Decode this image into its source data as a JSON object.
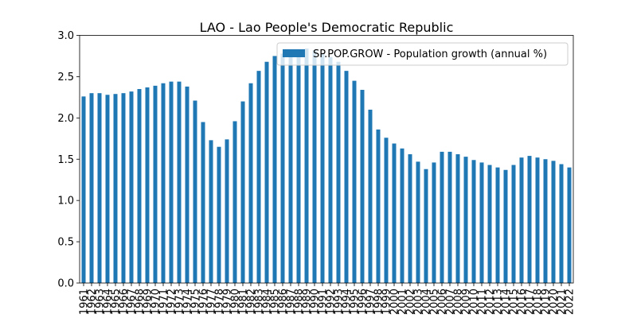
{
  "chart_data": {
    "type": "bar",
    "title": "LAO - Lao People's Democratic Republic",
    "xlabel": "",
    "ylabel": "",
    "ylim": [
      0,
      3.0
    ],
    "yticks": [
      "0.0",
      "0.5",
      "1.0",
      "1.5",
      "2.0",
      "2.5",
      "3.0"
    ],
    "legend": {
      "placement": "upper-right"
    },
    "categories": [
      "1961",
      "1962",
      "1963",
      "1964",
      "1965",
      "1966",
      "1967",
      "1968",
      "1969",
      "1970",
      "1971",
      "1972",
      "1973",
      "1974",
      "1975",
      "1976",
      "1977",
      "1978",
      "1979",
      "1980",
      "1981",
      "1982",
      "1983",
      "1984",
      "1985",
      "1986",
      "1987",
      "1988",
      "1989",
      "1990",
      "1991",
      "1992",
      "1993",
      "1994",
      "1995",
      "1996",
      "1997",
      "1998",
      "1999",
      "2000",
      "2001",
      "2002",
      "2003",
      "2004",
      "2005",
      "2006",
      "2007",
      "2008",
      "2009",
      "2010",
      "2011",
      "2012",
      "2013",
      "2014",
      "2015",
      "2016",
      "2017",
      "2018",
      "2019",
      "2020",
      "2021",
      "2022"
    ],
    "series": [
      {
        "name": "SP.POP.GROW - Population growth (annual %)",
        "color": "#1f77b4",
        "values": [
          2.26,
          2.3,
          2.3,
          2.28,
          2.29,
          2.3,
          2.32,
          2.35,
          2.37,
          2.39,
          2.42,
          2.44,
          2.44,
          2.38,
          2.21,
          1.95,
          1.73,
          1.65,
          1.74,
          1.96,
          2.2,
          2.42,
          2.57,
          2.68,
          2.75,
          2.78,
          2.8,
          2.83,
          2.84,
          2.82,
          2.78,
          2.74,
          2.68,
          2.57,
          2.45,
          2.34,
          2.1,
          1.86,
          1.76,
          1.69,
          1.63,
          1.56,
          1.47,
          1.38,
          1.46,
          1.59,
          1.59,
          1.56,
          1.53,
          1.49,
          1.46,
          1.43,
          1.4,
          1.37,
          1.43,
          1.52,
          1.54,
          1.52,
          1.5,
          1.48,
          1.44,
          1.4
        ]
      }
    ]
  }
}
